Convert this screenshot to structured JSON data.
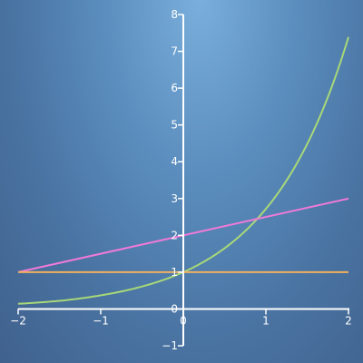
{
  "chart_data": {
    "type": "line",
    "title": "",
    "xlabel": "",
    "ylabel": "",
    "xlim": [
      -2,
      2
    ],
    "ylim": [
      -1,
      8
    ],
    "grid": false,
    "x_ticks": [
      -2,
      -1,
      0,
      1,
      2
    ],
    "y_ticks": [
      -1,
      0,
      1,
      2,
      3,
      4,
      5,
      6,
      7,
      8
    ],
    "x_tick_labels": [
      "−2",
      "−1",
      "0",
      "1",
      "2"
    ],
    "y_tick_labels": [
      "−1",
      "0",
      "1",
      "2",
      "3",
      "4",
      "5",
      "6",
      "7",
      "8"
    ],
    "colors": {
      "axis": "#ffffff"
    },
    "series": [
      {
        "color": "#a8d878",
        "x": [
          -2,
          -1.5,
          -1,
          -0.5,
          0,
          0.5,
          1,
          1.5,
          2
        ],
        "y": [
          0.14,
          0.22,
          0.37,
          0.61,
          1.0,
          1.65,
          2.72,
          4.48,
          7.39
        ]
      },
      {
        "color": "#f07ad8",
        "x": [
          -2,
          2
        ],
        "y": [
          1,
          3
        ]
      },
      {
        "color": "#f0b060",
        "x": [
          -2,
          2
        ],
        "y": [
          1,
          1
        ]
      }
    ]
  }
}
